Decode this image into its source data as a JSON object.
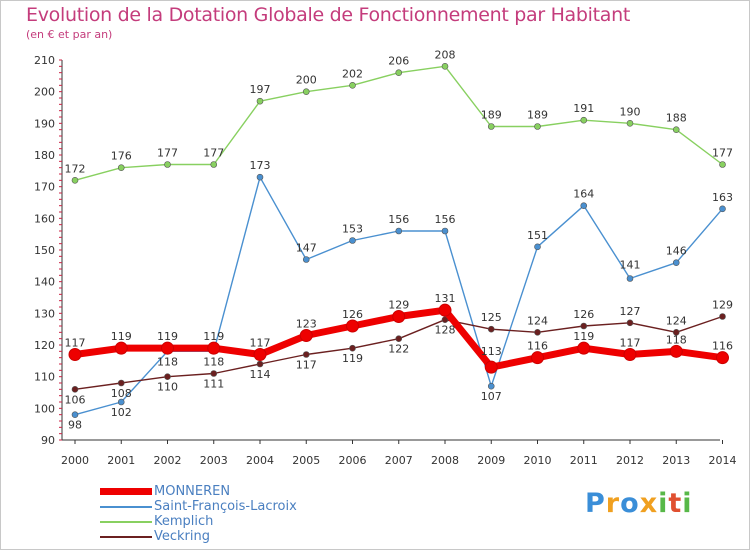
{
  "chart_data": {
    "type": "line",
    "title": "Evolution de la Dotation Globale de Fonctionnement par Habitant",
    "subtitle": "(en € et par an)",
    "xlabel": "",
    "ylabel": "",
    "ylim": [
      90,
      210
    ],
    "yticks": [
      90,
      100,
      110,
      120,
      130,
      140,
      150,
      160,
      170,
      180,
      190,
      200,
      210
    ],
    "categories": [
      "2000",
      "2001",
      "2002",
      "2003",
      "2004",
      "2005",
      "2006",
      "2007",
      "2008",
      "2009",
      "2010",
      "2011",
      "2012",
      "2013",
      "2014"
    ],
    "series": [
      {
        "name": "MONNEREN",
        "color": "#ee0000",
        "values": [
          117,
          119,
          119,
          119,
          117,
          123,
          126,
          129,
          131,
          113,
          116,
          119,
          117,
          118,
          116
        ]
      },
      {
        "name": "Saint-François-Lacroix",
        "color": "#4a90d0",
        "values": [
          98,
          102,
          118,
          118,
          173,
          147,
          153,
          156,
          156,
          107,
          151,
          164,
          141,
          146,
          163
        ]
      },
      {
        "name": "Kemplich",
        "color": "#88d060",
        "values": [
          172,
          176,
          177,
          177,
          197,
          200,
          202,
          206,
          208,
          189,
          189,
          191,
          190,
          188,
          177
        ]
      },
      {
        "name": "Veckring",
        "color": "#6b2020",
        "values": [
          106,
          108,
          110,
          111,
          114,
          117,
          119,
          122,
          128,
          125,
          124,
          126,
          127,
          124,
          129
        ]
      }
    ],
    "legend_position": "bottom-left",
    "grid": false
  },
  "logo": {
    "letters": [
      "P",
      "r",
      "o",
      "x",
      "i",
      "t",
      "i"
    ],
    "colors": [
      "#3a8ed8",
      "#f0a020",
      "#3a8ed8",
      "#f0a020",
      "#58b848",
      "#e05030",
      "#58b848"
    ]
  }
}
